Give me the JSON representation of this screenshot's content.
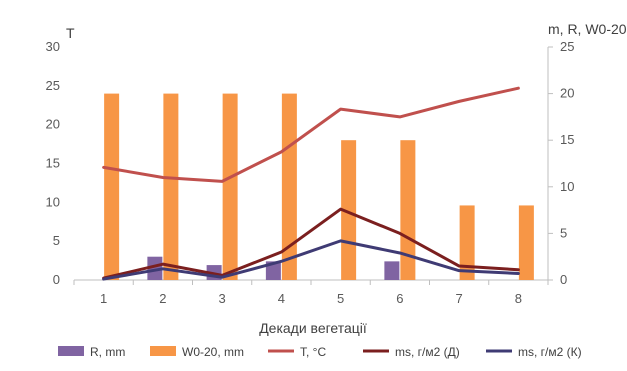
{
  "chart_data": {
    "type": "bar",
    "xlabel": "Декади вегетації",
    "ylabel_left": "T",
    "ylabel_right": "m, R, W0-20",
    "categories": [
      "1",
      "2",
      "3",
      "4",
      "5",
      "6",
      "7",
      "8"
    ],
    "y_left": {
      "min": 0,
      "max": 30,
      "ticks": [
        "0",
        "5",
        "10",
        "15",
        "20",
        "25",
        "30"
      ]
    },
    "y_right": {
      "min": 0,
      "max": 25,
      "ticks": [
        "0",
        "5",
        "10",
        "15",
        "20",
        "25"
      ]
    },
    "gridlines": false,
    "legend_position": "bottom",
    "series": [
      {
        "name": "R, mm",
        "type": "bar",
        "axis": "right",
        "color": "#8064A2",
        "values": [
          0,
          2.5,
          1.6,
          2.0,
          0,
          2.0,
          0,
          0
        ]
      },
      {
        "name": "W0-20, mm",
        "type": "bar",
        "axis": "right",
        "color": "#F79646",
        "values": [
          20,
          20,
          20,
          20,
          15,
          15,
          8,
          8
        ]
      },
      {
        "name": "T, °С",
        "type": "line",
        "axis": "left",
        "color": "#C0504D",
        "values": [
          14.5,
          13.2,
          12.7,
          16.5,
          22,
          21,
          23,
          24.7
        ]
      },
      {
        "name": "ms, г/м2 (Д)",
        "type": "line",
        "axis": "right",
        "color": "#7B1F1F",
        "values": [
          0.2,
          1.7,
          0.5,
          3.0,
          7.6,
          5.0,
          1.5,
          1.1
        ]
      },
      {
        "name": "ms, г/м2 (К)",
        "type": "line",
        "axis": "right",
        "color": "#3F3B74",
        "values": [
          0.1,
          1.2,
          0.3,
          2.0,
          4.2,
          2.9,
          1.0,
          0.7
        ]
      }
    ]
  }
}
